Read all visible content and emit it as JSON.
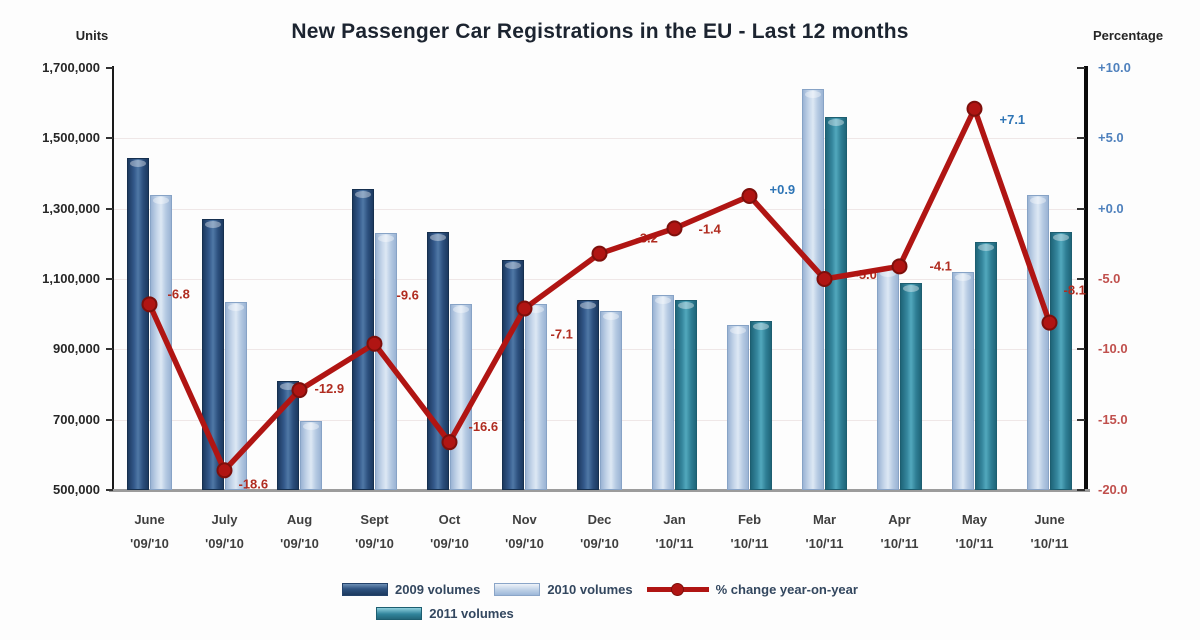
{
  "header": {
    "title": "New Passenger Car Registrations in the EU - Last 12 months",
    "left_axis_title": "Units",
    "right_axis_title": "Percentage"
  },
  "chart_data": {
    "type": "combo-bar-line",
    "title": "New Passenger Car Registrations in the EU - Last 12 months",
    "left_axis": {
      "title": "Units",
      "min": 500000,
      "max": 1700000,
      "tick_labels": [
        "1,700,000",
        "1,500,000",
        "1,300,000",
        "1,100,000",
        "900,000",
        "700,000",
        "500,000"
      ]
    },
    "right_axis": {
      "title": "Percentage",
      "min": -20,
      "max": 10,
      "tick_labels": [
        {
          "text": "+10.0",
          "sign": "positive"
        },
        {
          "text": "+5.0",
          "sign": "positive"
        },
        {
          "text": "+0.0",
          "sign": "positive"
        },
        {
          "text": "-5.0",
          "sign": "negative"
        },
        {
          "text": "-10.0",
          "sign": "negative"
        },
        {
          "text": "-15.0",
          "sign": "negative"
        },
        {
          "text": "-20.0",
          "sign": "negative"
        }
      ]
    },
    "line_series_name": "% change year-on-year",
    "months": [
      {
        "name": "June",
        "years": "'09/'10",
        "bars": [
          {
            "series": "2009",
            "value": 1445000
          },
          {
            "series": "2010",
            "value": 1340000
          }
        ],
        "pct": -6.8,
        "pct_label": "-6.8"
      },
      {
        "name": "July",
        "years": "'09/'10",
        "bars": [
          {
            "series": "2009",
            "value": 1270000
          },
          {
            "series": "2010",
            "value": 1035000
          }
        ],
        "pct": -18.6,
        "pct_label": "-18.6"
      },
      {
        "name": "Aug",
        "years": "'09/'10",
        "bars": [
          {
            "series": "2009",
            "value": 810000
          },
          {
            "series": "2010",
            "value": 695000
          }
        ],
        "pct": -12.9,
        "pct_label": "-12.9"
      },
      {
        "name": "Sept",
        "years": "'09/'10",
        "bars": [
          {
            "series": "2009",
            "value": 1355000
          },
          {
            "series": "2010",
            "value": 1230000
          }
        ],
        "pct": -9.6,
        "pct_label": "-9.6"
      },
      {
        "name": "Oct",
        "years": "'09/'10",
        "bars": [
          {
            "series": "2009",
            "value": 1235000
          },
          {
            "series": "2010",
            "value": 1030000
          }
        ],
        "pct": -16.6,
        "pct_label": "-16.6"
      },
      {
        "name": "Nov",
        "years": "'09/'10",
        "bars": [
          {
            "series": "2009",
            "value": 1155000
          },
          {
            "series": "2010",
            "value": 1030000
          }
        ],
        "pct": -7.1,
        "pct_label": "-7.1"
      },
      {
        "name": "Dec",
        "years": "'09/'10",
        "bars": [
          {
            "series": "2009",
            "value": 1040000
          },
          {
            "series": "2010",
            "value": 1010000
          }
        ],
        "pct": -3.2,
        "pct_label": "-3.2",
        "label_behind_line": true
      },
      {
        "name": "Jan",
        "years": "'10/'11",
        "bars": [
          {
            "series": "2010",
            "value": 1055000
          },
          {
            "series": "2011",
            "value": 1040000
          }
        ],
        "pct": -1.4,
        "pct_label": "-1.4"
      },
      {
        "name": "Feb",
        "years": "'10/'11",
        "bars": [
          {
            "series": "2010",
            "value": 970000
          },
          {
            "series": "2011",
            "value": 980000
          }
        ],
        "pct": 0.9,
        "pct_label": "+0.9"
      },
      {
        "name": "Mar",
        "years": "'10/'11",
        "bars": [
          {
            "series": "2010",
            "value": 1640000
          },
          {
            "series": "2011",
            "value": 1560000
          }
        ],
        "pct": -5.0,
        "pct_label": "-5.0",
        "label_behind_line": true
      },
      {
        "name": "Apr",
        "years": "'10/'11",
        "bars": [
          {
            "series": "2010",
            "value": 1130000
          },
          {
            "series": "2011",
            "value": 1090000
          }
        ],
        "pct": -4.1,
        "pct_label": "-4.1"
      },
      {
        "name": "May",
        "years": "'10/'11",
        "bars": [
          {
            "series": "2010",
            "value": 1120000
          },
          {
            "series": "2011",
            "value": 1205000
          }
        ],
        "pct": 7.1,
        "pct_label": "+7.1"
      },
      {
        "name": "June",
        "years": "'10/'11",
        "bars": [
          {
            "series": "2010",
            "value": 1340000
          },
          {
            "series": "2011",
            "value": 1235000
          }
        ],
        "pct": -8.1,
        "pct_label": "-8.1"
      }
    ],
    "colors": {
      "bar_2009": "#2e5380",
      "bar_2010": "#bdd0e6",
      "bar_2011": "#31859c",
      "line": "#b01513",
      "positive_label": "#2e75b6",
      "negative_label": "#b02c20"
    }
  },
  "legend": {
    "items": [
      {
        "label": "2009 volumes",
        "swatch": "2009"
      },
      {
        "label": "2010 volumes",
        "swatch": "2010"
      },
      {
        "label": "% change year-on-year",
        "swatch": "line"
      },
      {
        "label": "2011 volumes",
        "swatch": "2011"
      }
    ]
  }
}
